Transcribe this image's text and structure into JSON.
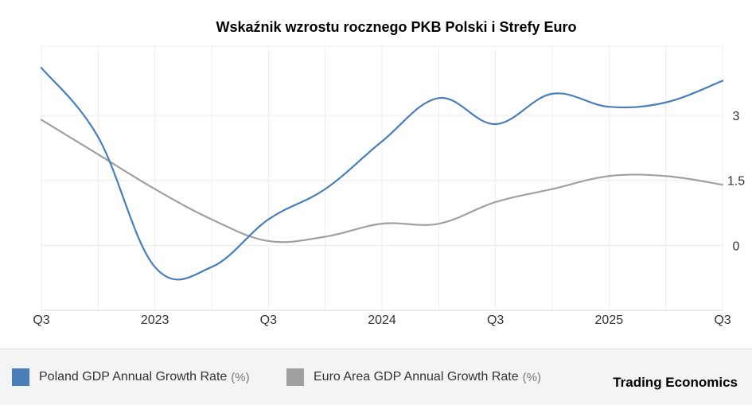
{
  "chart_data": {
    "type": "line",
    "title": "Wskaźnik wzrostu rocznego PKB Polski i Strefy Euro",
    "x_labels": [
      "Q3",
      "2023",
      "Q3",
      "2024",
      "Q3",
      "2025",
      "Q3"
    ],
    "x_label_positions": [
      0,
      2,
      4,
      6,
      8,
      10,
      12
    ],
    "y_ticks": [
      0,
      1.5,
      3
    ],
    "y_tick_labels": [
      "0",
      "1.5",
      "3"
    ],
    "ylim": [
      -1.5,
      4.6
    ],
    "xlim": [
      0,
      12
    ],
    "grid": true,
    "series": [
      {
        "name": "Poland GDP Annual Growth Rate",
        "unit": "(%)",
        "color": "#4a7ebb",
        "x": [
          0,
          1,
          2,
          3,
          4,
          5,
          6,
          7,
          8,
          9,
          10,
          11,
          12
        ],
        "values": [
          4.1,
          2.5,
          -0.5,
          -0.5,
          0.6,
          1.3,
          2.4,
          3.4,
          2.8,
          3.5,
          3.2,
          3.3,
          3.8
        ]
      },
      {
        "name": "Euro Area GDP Annual Growth Rate",
        "unit": "(%)",
        "color": "#a0a0a0",
        "x": [
          0,
          1,
          2,
          3,
          4,
          5,
          6,
          7,
          8,
          9,
          10,
          11,
          12
        ],
        "values": [
          2.9,
          2.1,
          1.3,
          0.6,
          0.1,
          0.2,
          0.5,
          0.5,
          1.0,
          1.3,
          1.6,
          1.6,
          1.4
        ]
      }
    ]
  },
  "brand": "Trading Economics"
}
